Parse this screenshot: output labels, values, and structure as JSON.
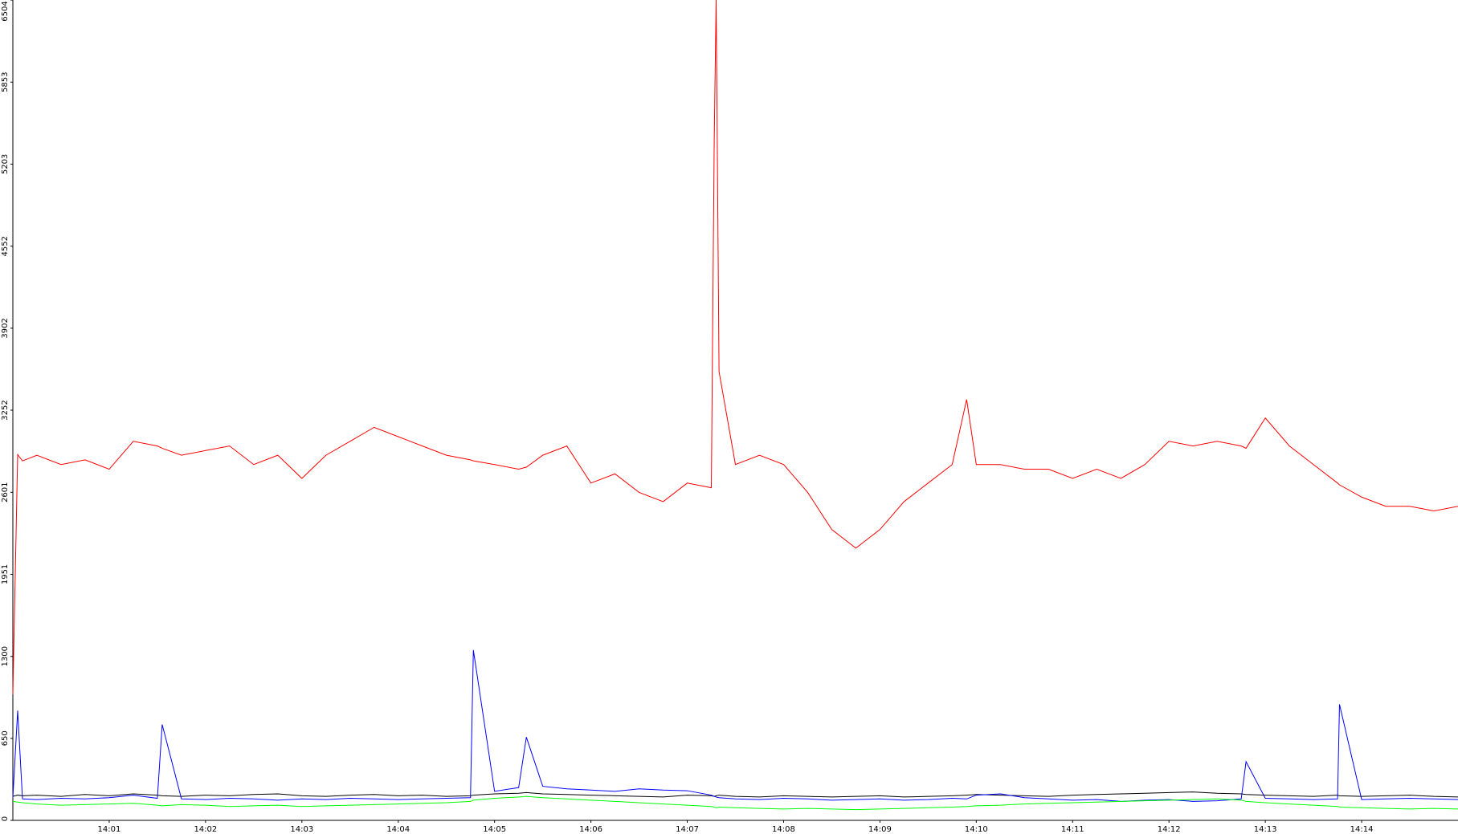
{
  "chart_data": {
    "type": "line",
    "x": [
      0,
      0.05,
      0.1,
      0.25,
      0.5,
      0.75,
      1,
      1.25,
      1.5,
      1.55,
      1.75,
      2,
      2.25,
      2.5,
      2.75,
      3,
      3.25,
      3.5,
      3.75,
      4,
      4.25,
      4.5,
      4.75,
      4.78,
      5,
      5.25,
      5.33,
      5.5,
      5.75,
      6,
      6.25,
      6.5,
      6.75,
      7,
      7.25,
      7.28,
      7.3,
      7.33,
      7.5,
      7.75,
      8,
      8.25,
      8.5,
      8.75,
      9,
      9.25,
      9.5,
      9.75,
      9.9,
      10,
      10.25,
      10.5,
      10.75,
      11,
      11.25,
      11.5,
      11.75,
      12,
      12.25,
      12.5,
      12.75,
      12.8,
      13,
      13.25,
      13.5,
      13.75,
      13.77,
      14,
      14.25,
      14.5,
      14.75,
      15
    ],
    "series": [
      {
        "color": "#ff0000",
        "values": [
          1000,
          2900,
          2850,
          2895,
          2821,
          2858,
          2784,
          3005,
          2968,
          2950,
          2895,
          2932,
          2968,
          2821,
          2895,
          2711,
          2895,
          3005,
          3116,
          3042,
          2968,
          2895,
          2858,
          2850,
          2821,
          2784,
          2800,
          2895,
          2968,
          2674,
          2747,
          2600,
          2527,
          2674,
          2637,
          5399,
          6504,
          3558,
          2821,
          2895,
          2821,
          2600,
          2306,
          2158,
          2306,
          2527,
          2674,
          2821,
          3337,
          2821,
          2821,
          2784,
          2784,
          2711,
          2784,
          2711,
          2821,
          3005,
          2968,
          3005,
          2968,
          2950,
          3190,
          2968,
          2821,
          2674,
          2660,
          2563,
          2490,
          2490,
          2453,
          2490
        ]
      },
      {
        "color": "#000000",
        "values": [
          190,
          200,
          195,
          200,
          190,
          205,
          195,
          210,
          200,
          195,
          190,
          200,
          195,
          205,
          210,
          195,
          190,
          200,
          205,
          195,
          200,
          190,
          195,
          200,
          210,
          215,
          220,
          210,
          205,
          200,
          195,
          190,
          185,
          200,
          195,
          190,
          195,
          200,
          190,
          185,
          195,
          190,
          185,
          190,
          195,
          185,
          190,
          195,
          200,
          205,
          200,
          195,
          190,
          200,
          205,
          210,
          215,
          220,
          225,
          215,
          210,
          205,
          200,
          195,
          190,
          200,
          195,
          190,
          195,
          200,
          190,
          185
        ]
      },
      {
        "color": "#0000ff",
        "values": [
          180,
          870,
          170,
          165,
          175,
          170,
          180,
          200,
          175,
          760,
          170,
          165,
          175,
          170,
          160,
          170,
          165,
          175,
          170,
          165,
          170,
          175,
          180,
          1350,
          230,
          260,
          660,
          270,
          250,
          240,
          230,
          250,
          240,
          235,
          200,
          190,
          185,
          180,
          170,
          165,
          175,
          170,
          160,
          165,
          170,
          160,
          165,
          175,
          170,
          200,
          210,
          180,
          170,
          160,
          165,
          150,
          160,
          165,
          150,
          155,
          170,
          465,
          175,
          170,
          165,
          170,
          920,
          165,
          170,
          175,
          170,
          165
        ]
      },
      {
        "color": "#00ff00",
        "values": [
          150,
          145,
          140,
          130,
          120,
          125,
          130,
          135,
          120,
          115,
          125,
          120,
          110,
          115,
          120,
          110,
          115,
          120,
          125,
          130,
          135,
          140,
          150,
          160,
          175,
          185,
          190,
          180,
          170,
          160,
          150,
          140,
          130,
          120,
          110,
          105,
          100,
          105,
          100,
          95,
          90,
          95,
          90,
          85,
          90,
          95,
          100,
          105,
          110,
          115,
          120,
          130,
          135,
          140,
          145,
          150,
          155,
          160,
          165,
          170,
          160,
          150,
          140,
          130,
          120,
          110,
          105,
          100,
          95,
          90,
          95,
          90
        ]
      }
    ],
    "xlim": [
      0,
      15
    ],
    "xticks": [
      {
        "value": 1,
        "label": "14:01"
      },
      {
        "value": 2,
        "label": "14:02"
      },
      {
        "value": 3,
        "label": "14:03"
      },
      {
        "value": 4,
        "label": "14:04"
      },
      {
        "value": 5,
        "label": "14:05"
      },
      {
        "value": 6,
        "label": "14:06"
      },
      {
        "value": 7,
        "label": "14:07"
      },
      {
        "value": 8,
        "label": "14:08"
      },
      {
        "value": 9,
        "label": "14:09"
      },
      {
        "value": 10,
        "label": "14:10"
      },
      {
        "value": 11,
        "label": "14:11"
      },
      {
        "value": 12,
        "label": "14:12"
      },
      {
        "value": 13,
        "label": "14:13"
      },
      {
        "value": 14,
        "label": "14:14"
      }
    ],
    "ylim": [
      0,
      6504
    ],
    "yticks": [
      0,
      650,
      1300,
      1951,
      2601,
      3252,
      3902,
      4552,
      5203,
      5853,
      6504
    ]
  }
}
